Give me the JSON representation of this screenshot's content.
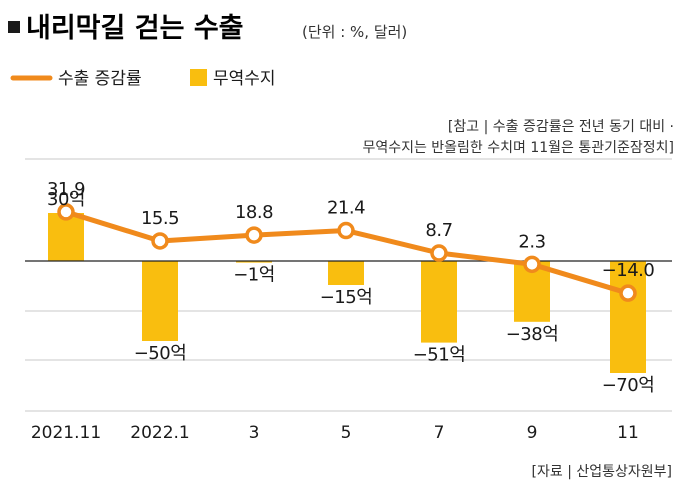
{
  "title": "내리막길 걷는 수출",
  "unit": "(단위 : %, 달러)",
  "note": [
    "[참고 | 수출 증감률은 전년 동기 대비 ·",
    "무역수지는 반올림한 수치며 11월은 통관기준잠정치]"
  ],
  "source": "[자료 | 산업통상자원부]",
  "colors": {
    "line": "#f08a1c",
    "bar": "#f9be0f",
    "axis": "#222222",
    "grid": "#c8c8c8"
  },
  "chart_data": {
    "type": "bar",
    "categories": [
      "2021.11",
      "2022.1",
      "3",
      "5",
      "7",
      "9",
      "11"
    ],
    "ylim": [
      -100,
      90
    ],
    "grid": true,
    "legend_position": "top-left",
    "series": [
      {
        "name": "수출 증감률",
        "type": "line",
        "values": [
          31.9,
          15.5,
          18.8,
          21.4,
          8.7,
          2.3,
          -14.0
        ],
        "labels": [
          "31.9",
          "15.5",
          "18.8",
          "21.4",
          "8.7",
          "2.3",
          "−14.0"
        ]
      },
      {
        "name": "무역수지",
        "type": "bar",
        "values": [
          30,
          -50,
          -1,
          -15,
          -51,
          -38,
          -70
        ],
        "labels": [
          "30억",
          "−50억",
          "−1억",
          "−15억",
          "−51억",
          "−38억",
          "−70억"
        ]
      }
    ]
  }
}
